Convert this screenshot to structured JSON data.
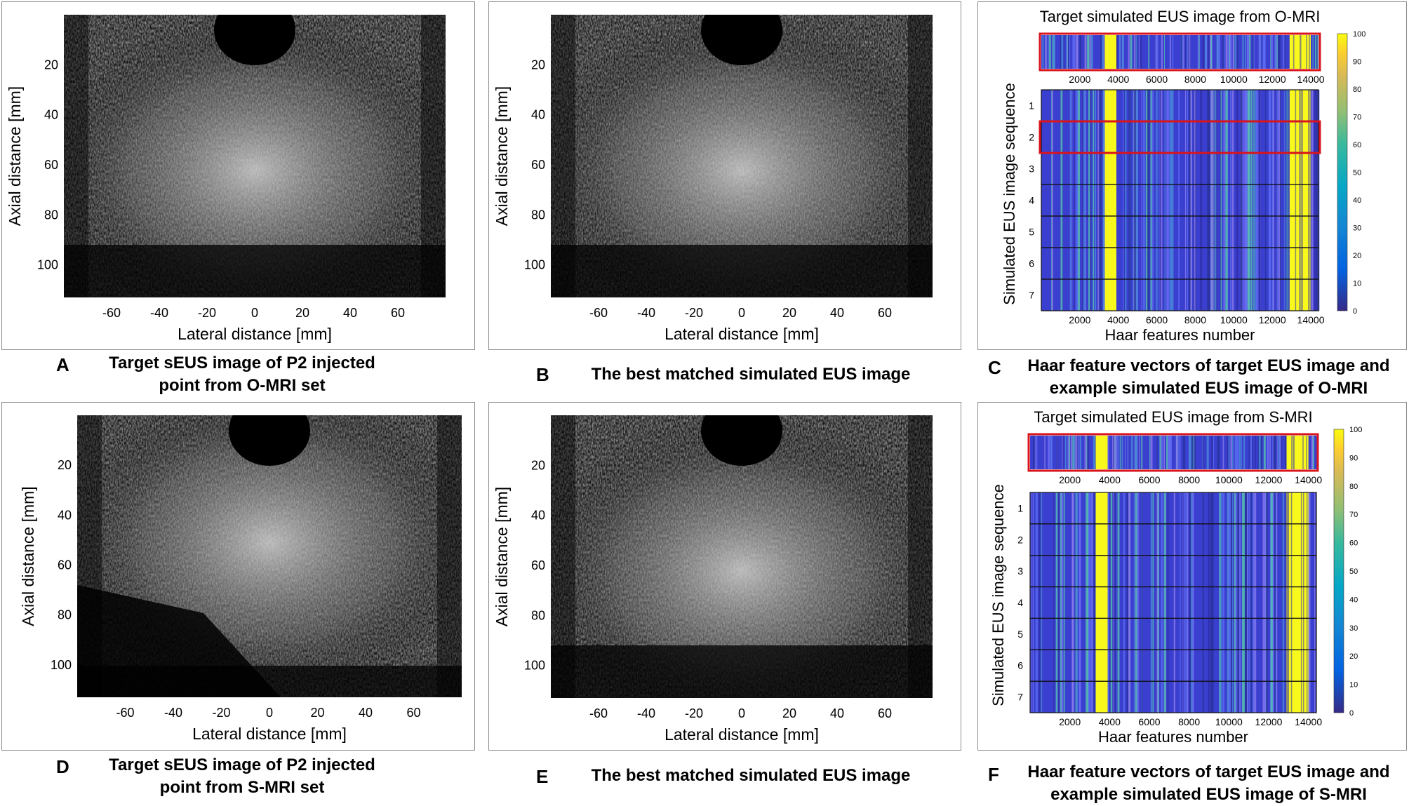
{
  "panels": [
    {
      "id": "A",
      "letter": "A",
      "caption_lines": [
        "Target sEUS image of P2 injected",
        "point from O-MRI set"
      ],
      "type": "eus",
      "variant": "normal",
      "xlabel": "Lateral distance [mm]",
      "ylabel": "Axial distance [mm]",
      "xticks": [
        "-60",
        "-40",
        "-20",
        "0",
        "20",
        "40",
        "60"
      ],
      "yticks": [
        "20",
        "40",
        "60",
        "80",
        "100"
      ]
    },
    {
      "id": "B",
      "letter": "B",
      "caption_lines": [
        "The best matched  simulated EUS image"
      ],
      "type": "eus",
      "variant": "normal",
      "xlabel": "Lateral distance [mm]",
      "ylabel": "Axial distance [mm]",
      "xticks": [
        "-60",
        "-40",
        "-20",
        "0",
        "20",
        "40",
        "60"
      ],
      "yticks": [
        "20",
        "40",
        "60",
        "80",
        "100"
      ]
    },
    {
      "id": "C",
      "letter": "C",
      "caption_lines": [
        "Haar feature vectors of target EUS image and",
        "example simulated EUS image of O-MRI"
      ],
      "type": "haar",
      "variant": "O",
      "top_title": "Target simulated EUS image from O-MRI",
      "xlabel": "Haar features number",
      "ylabel": "Simulated EUS image sequence",
      "xticks": [
        "2000",
        "4000",
        "6000",
        "8000",
        "10000",
        "12000",
        "14000"
      ],
      "seq_labels": [
        "1",
        "2",
        "3",
        "4",
        "5",
        "6",
        "7"
      ],
      "colorbar_ticks": [
        "100",
        "90",
        "80",
        "70",
        "60",
        "50",
        "40",
        "30",
        "20",
        "10",
        "0"
      ],
      "highlighted_row": 2
    },
    {
      "id": "D",
      "letter": "D",
      "caption_lines": [
        "Target sEUS image of P2 injected",
        "point from S-MRI set"
      ],
      "type": "eus",
      "variant": "wedge",
      "xlabel": "Lateral distance [mm]",
      "ylabel": "Axial distance [mm]",
      "xticks": [
        "-60",
        "-40",
        "-20",
        "0",
        "20",
        "40",
        "60"
      ],
      "yticks": [
        "20",
        "40",
        "60",
        "80",
        "100"
      ]
    },
    {
      "id": "E",
      "letter": "E",
      "caption_lines": [
        "The best matched  simulated EUS image"
      ],
      "type": "eus",
      "variant": "normal",
      "xlabel": "Lateral distance [mm]",
      "ylabel": "Axial distance [mm]",
      "xticks": [
        "-60",
        "-40",
        "-20",
        "0",
        "20",
        "40",
        "60"
      ],
      "yticks": [
        "20",
        "40",
        "60",
        "80",
        "100"
      ]
    },
    {
      "id": "F",
      "letter": "F",
      "caption_lines": [
        "Haar feature vectors of target EUS image and",
        "example simulated EUS image of S-MRI"
      ],
      "type": "haar",
      "variant": "S",
      "top_title": "Target simulated EUS image from S-MRI",
      "xlabel": "Haar features number",
      "ylabel": "Simulated EUS image sequence",
      "xticks": [
        "2000",
        "4000",
        "6000",
        "8000",
        "10000",
        "12000",
        "14000"
      ],
      "seq_labels": [
        "1",
        "2",
        "3",
        "4",
        "5",
        "6",
        "7"
      ],
      "colorbar_ticks": [
        "100",
        "90",
        "80",
        "70",
        "60",
        "50",
        "40",
        "30",
        "20",
        "10",
        "0"
      ],
      "highlighted_row": null
    }
  ],
  "colors": {
    "yellow": "#f9f81c",
    "blue": "#3b3fcf",
    "highlight": "#d9141c"
  }
}
